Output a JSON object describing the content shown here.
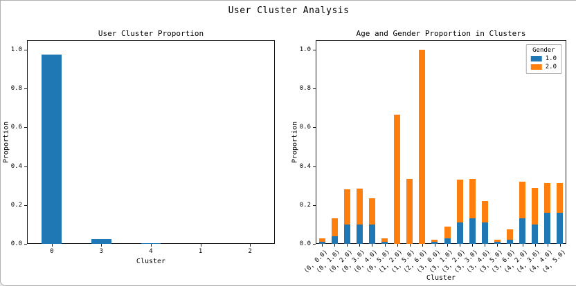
{
  "figure_title": "User Cluster Analysis",
  "colors": {
    "series_blue": "#1f77b4",
    "series_orange": "#ff7f0e",
    "axes": "#1a1a1a"
  },
  "chart_data": [
    {
      "type": "bar",
      "title": "User Cluster Proportion",
      "xlabel": "Cluster",
      "ylabel": "Proportion",
      "categories": [
        "0",
        "3",
        "4",
        "1",
        "2"
      ],
      "values": [
        0.975,
        0.025,
        0.002,
        0.001,
        0.001
      ],
      "bar_color": "#1f77b4",
      "ylim": [
        0,
        1.05
      ],
      "yticks": [
        0.0,
        0.2,
        0.4,
        0.6,
        0.8,
        1.0
      ],
      "grid": false,
      "legend_position": "none"
    },
    {
      "type": "stacked-bar",
      "title": "Age and Gender Proportion in Clusters",
      "xlabel": "Cluster",
      "ylabel": "Proportion",
      "categories": [
        "(0, 0.0)",
        "(0, 1.0)",
        "(0, 2.0)",
        "(0, 3.0)",
        "(0, 4.0)",
        "(0, 5.0)",
        "(1, 2.0)",
        "(1, 5.0)",
        "(2, 6.0)",
        "(3, 0.0)",
        "(3, 1.0)",
        "(3, 2.0)",
        "(3, 3.0)",
        "(3, 4.0)",
        "(3, 5.0)",
        "(3, 6.0)",
        "(4, 2.0)",
        "(4, 3.0)",
        "(4, 4.0)",
        "(4, 5.0)"
      ],
      "series": [
        {
          "name": "1.0",
          "color": "#1f77b4",
          "values": [
            0.01,
            0.04,
            0.1,
            0.1,
            0.1,
            0.01,
            0.0,
            0.0,
            0.0,
            0.01,
            0.03,
            0.11,
            0.13,
            0.11,
            0.01,
            0.02,
            0.13,
            0.1,
            0.16,
            0.16
          ]
        },
        {
          "name": "2.0",
          "color": "#ff7f0e",
          "values": [
            0.02,
            0.09,
            0.18,
            0.185,
            0.135,
            0.02,
            0.665,
            0.335,
            1.0,
            0.01,
            0.06,
            0.22,
            0.205,
            0.11,
            0.01,
            0.055,
            0.19,
            0.19,
            0.155,
            0.155
          ]
        }
      ],
      "legend": {
        "title": "Gender",
        "entries": [
          {
            "label": "1.0",
            "color": "#1f77b4"
          },
          {
            "label": "2.0",
            "color": "#ff7f0e"
          }
        ],
        "position": "upper right"
      },
      "ylim": [
        0,
        1.05
      ],
      "yticks": [
        0.0,
        0.2,
        0.4,
        0.6,
        0.8,
        1.0
      ],
      "grid": false
    }
  ]
}
